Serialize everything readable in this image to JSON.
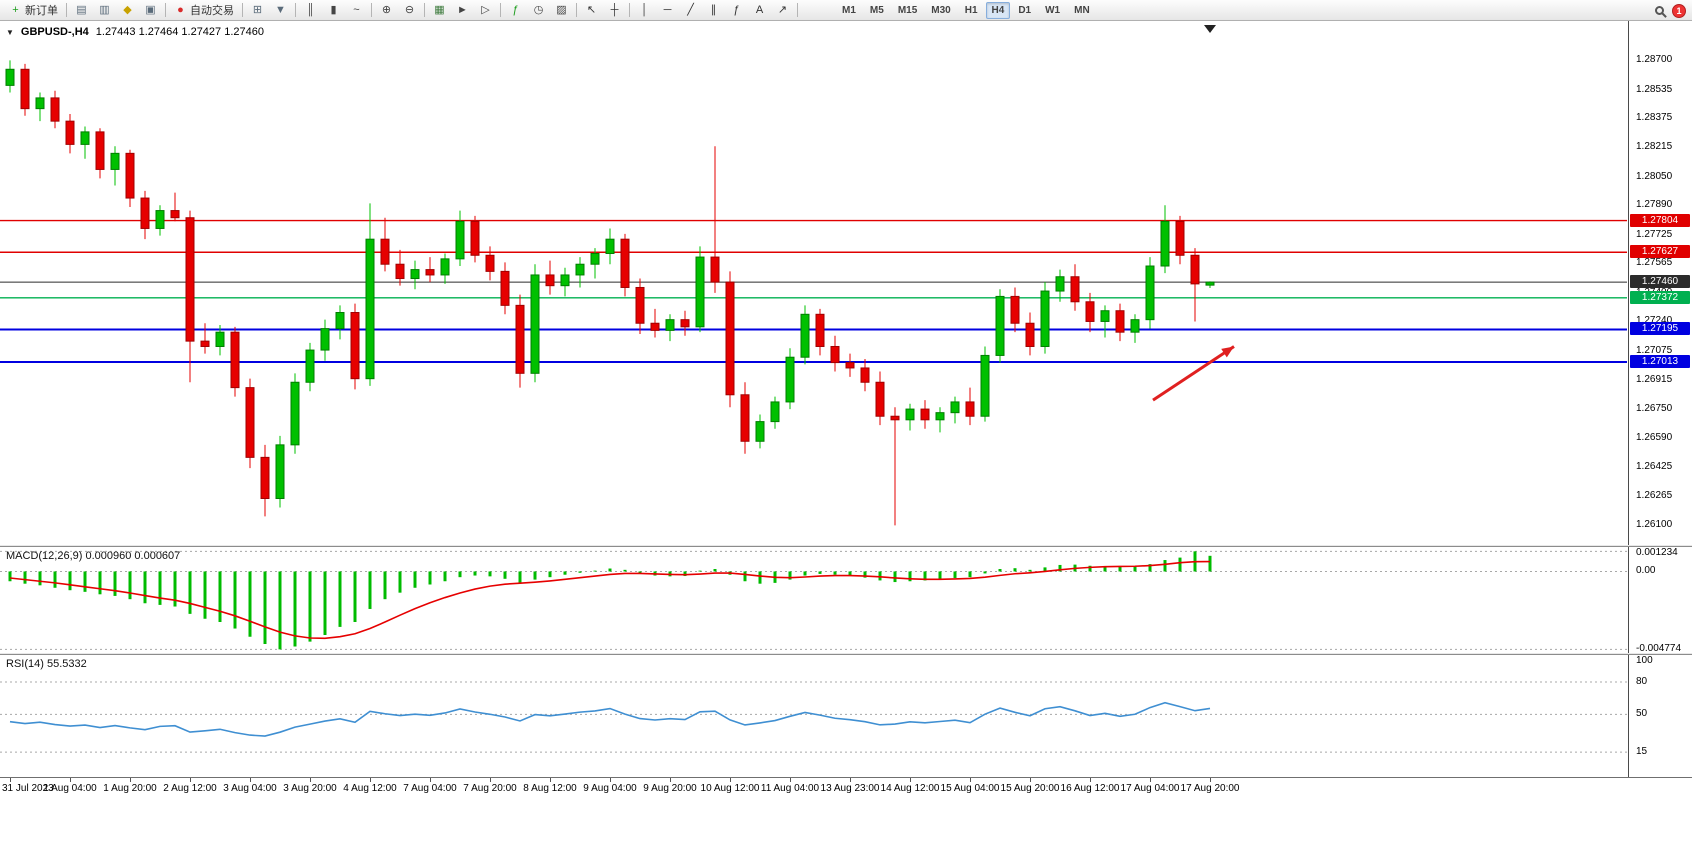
{
  "toolbar": {
    "new_order_label": "新订单",
    "auto_trading_label": "自动交易",
    "notification_count": "1",
    "timeframes": [
      "M1",
      "M5",
      "M15",
      "M30",
      "H1",
      "H4",
      "D1",
      "W1",
      "MN"
    ],
    "active_timeframe": "H4",
    "items": [
      {
        "name": "new-order-button",
        "glyph": "+",
        "color": "#1d9d1d",
        "label": "新订单"
      },
      {
        "sep": true
      },
      {
        "name": "market-watch-icon",
        "glyph": "▤",
        "color": "#5a6b7a"
      },
      {
        "name": "data-window-icon",
        "glyph": "▥",
        "color": "#5a6b7a"
      },
      {
        "name": "navigator-icon",
        "glyph": "◆",
        "color": "#c8a200"
      },
      {
        "name": "terminal-icon",
        "glyph": "▣",
        "color": "#5a6b7a"
      },
      {
        "sep": true
      },
      {
        "name": "autotrading-button",
        "glyph": "●",
        "color": "#d92b2b",
        "label": "自动交易"
      },
      {
        "sep": true
      },
      {
        "name": "new-chart-icon",
        "glyph": "⊞",
        "color": "#5a6b7a"
      },
      {
        "name": "profiles-icon",
        "glyph": "▼",
        "color": "#5a6b7a"
      },
      {
        "sep": true
      },
      {
        "name": "bar-chart-icon",
        "glyph": "║",
        "color": "#444444"
      },
      {
        "name": "candlestick-icon",
        "glyph": "▮",
        "color": "#444444"
      },
      {
        "name": "line-chart-icon",
        "glyph": "~",
        "color": "#444444"
      },
      {
        "sep": true
      },
      {
        "name": "zoom-in-icon",
        "glyph": "⊕",
        "color": "#444444"
      },
      {
        "name": "zoom-out-icon",
        "glyph": "⊖",
        "color": "#444444"
      },
      {
        "sep": true
      },
      {
        "name": "tile-windows-icon",
        "glyph": "▦",
        "color": "#3c7a3c"
      },
      {
        "name": "auto-scroll-icon",
        "glyph": "►",
        "color": "#444444"
      },
      {
        "name": "chart-shift-icon",
        "glyph": "▷",
        "color": "#444444"
      },
      {
        "sep": true
      },
      {
        "name": "indicators-button",
        "glyph": "ƒ",
        "color": "#1d9d1d"
      },
      {
        "name": "periods-dropdown",
        "glyph": "◷",
        "color": "#444444"
      },
      {
        "name": "templates-dropdown",
        "glyph": "▨",
        "color": "#444444"
      },
      {
        "sep": true
      },
      {
        "name": "cursor-icon",
        "glyph": "↖",
        "color": "#333333"
      },
      {
        "name": "crosshair-icon",
        "glyph": "┼",
        "color": "#333333"
      },
      {
        "sep": true
      },
      {
        "name": "vertical-line-icon",
        "glyph": "│",
        "color": "#333333"
      },
      {
        "name": "horizontal-line-icon",
        "glyph": "─",
        "color": "#333333"
      },
      {
        "name": "trendline-icon",
        "glyph": "╱",
        "color": "#333333"
      },
      {
        "name": "channel-icon",
        "glyph": "∥",
        "color": "#333333"
      },
      {
        "name": "fibonacci-icon",
        "glyph": "ƒ",
        "color": "#333333"
      },
      {
        "name": "text-icon",
        "glyph": "A",
        "color": "#333333"
      },
      {
        "name": "arrows-dropdown",
        "glyph": "↗",
        "color": "#333333"
      },
      {
        "sep": true
      }
    ]
  },
  "chart": {
    "collapse_glyph": "▼",
    "symbol_title": "GBPUSD-,H4",
    "ohlc_text": "1.27443 1.27464 1.27427 1.27460",
    "shift_marker_glyph": "▼"
  },
  "chart_data": [
    {
      "type": "candlestick",
      "symbol": "GBPUSD-",
      "timeframe": "H4",
      "open": "1.27443",
      "high": "1.27464",
      "low": "1.27427",
      "close": "1.27460",
      "ylim": [
        1.2599,
        1.2892
      ],
      "up_color": "#00c000",
      "up_border": "#007d00",
      "down_color": "#e60000",
      "down_border": "#a00000",
      "y_axis_ticks": [
        "1.28700",
        "1.28535",
        "1.28375",
        "1.28215",
        "1.28050",
        "1.27890",
        "1.27725",
        "1.27565",
        "1.27400",
        "1.27240",
        "1.27075",
        "1.26915",
        "1.26750",
        "1.26590",
        "1.26425",
        "1.26265",
        "1.26100"
      ],
      "x_labels": [
        "31 Jul 2023",
        "1 Aug 04:00",
        "1 Aug 20:00",
        "2 Aug 12:00",
        "3 Aug 04:00",
        "3 Aug 20:00",
        "4 Aug 12:00",
        "7 Aug 04:00",
        "7 Aug 20:00",
        "8 Aug 12:00",
        "9 Aug 04:00",
        "9 Aug 20:00",
        "10 Aug 12:00",
        "11 Aug 04:00",
        "13 Aug 23:00",
        "14 Aug 12:00",
        "15 Aug 04:00",
        "15 Aug 20:00",
        "16 Aug 12:00",
        "17 Aug 04:00",
        "17 Aug 20:00"
      ],
      "x_label_step": 4,
      "h_lines": [
        {
          "price": 1.27804,
          "label": "1.27804",
          "color": "#e00000",
          "width": 1.4
        },
        {
          "price": 1.27627,
          "label": "1.27627",
          "color": "#e00000",
          "width": 1.4
        },
        {
          "price": 1.2746,
          "label": "1.27460",
          "color": "#2b2b2b",
          "width": 1
        },
        {
          "price": 1.27372,
          "label": "1.27372",
          "color": "#00b050",
          "width": 1.4
        },
        {
          "price": 1.27195,
          "label": "1.27195",
          "color": "#0000e0",
          "width": 2
        },
        {
          "price": 1.27013,
          "label": "1.27013",
          "color": "#0000e0",
          "width": 2
        }
      ],
      "arrow": {
        "from_index": 76.2,
        "from_price": 1.268,
        "to_index": 81.6,
        "to_price": 1.271,
        "color": "#e02020"
      },
      "candles": [
        [
          1.2856,
          1.287,
          1.2852,
          1.2865
        ],
        [
          1.2865,
          1.2868,
          1.2839,
          1.2843
        ],
        [
          1.2843,
          1.2852,
          1.2836,
          1.2849
        ],
        [
          1.2849,
          1.2853,
          1.2832,
          1.2836
        ],
        [
          1.2836,
          1.284,
          1.2818,
          1.2823
        ],
        [
          1.2823,
          1.2833,
          1.2815,
          1.283
        ],
        [
          1.283,
          1.2832,
          1.2804,
          1.2809
        ],
        [
          1.2809,
          1.2822,
          1.28,
          1.2818
        ],
        [
          1.2818,
          1.282,
          1.2788,
          1.2793
        ],
        [
          1.2793,
          1.2797,
          1.277,
          1.2776
        ],
        [
          1.2776,
          1.2789,
          1.2772,
          1.2786
        ],
        [
          1.2786,
          1.2796,
          1.278,
          1.2782
        ],
        [
          1.2782,
          1.2786,
          1.269,
          1.2713
        ],
        [
          1.2713,
          1.2723,
          1.2706,
          1.271
        ],
        [
          1.271,
          1.2722,
          1.2705,
          1.2718
        ],
        [
          1.2718,
          1.2721,
          1.2682,
          1.2687
        ],
        [
          1.2687,
          1.2692,
          1.2642,
          1.2648
        ],
        [
          1.2648,
          1.2655,
          1.2615,
          1.2625
        ],
        [
          1.2625,
          1.266,
          1.262,
          1.2655
        ],
        [
          1.2655,
          1.2695,
          1.265,
          1.269
        ],
        [
          1.269,
          1.2712,
          1.2685,
          1.2708
        ],
        [
          1.2708,
          1.2725,
          1.2702,
          1.272
        ],
        [
          1.272,
          1.2733,
          1.2714,
          1.2729
        ],
        [
          1.2729,
          1.2734,
          1.2686,
          1.2692
        ],
        [
          1.2692,
          1.279,
          1.2688,
          1.277
        ],
        [
          1.277,
          1.2782,
          1.2752,
          1.2756
        ],
        [
          1.2756,
          1.2764,
          1.2744,
          1.2748
        ],
        [
          1.2748,
          1.2758,
          1.2742,
          1.2753
        ],
        [
          1.2753,
          1.276,
          1.2746,
          1.275
        ],
        [
          1.275,
          1.2762,
          1.2745,
          1.2759
        ],
        [
          1.2759,
          1.2786,
          1.2755,
          1.278
        ],
        [
          1.278,
          1.2783,
          1.2757,
          1.2761
        ],
        [
          1.2761,
          1.2766,
          1.2747,
          1.2752
        ],
        [
          1.2752,
          1.2757,
          1.2728,
          1.2733
        ],
        [
          1.2733,
          1.2739,
          1.2687,
          1.2695
        ],
        [
          1.2695,
          1.2756,
          1.269,
          1.275
        ],
        [
          1.275,
          1.2758,
          1.2739,
          1.2744
        ],
        [
          1.2744,
          1.2754,
          1.2738,
          1.275
        ],
        [
          1.275,
          1.276,
          1.2743,
          1.2756
        ],
        [
          1.2756,
          1.2765,
          1.2748,
          1.2762
        ],
        [
          1.2762,
          1.2776,
          1.2756,
          1.277
        ],
        [
          1.277,
          1.2773,
          1.2738,
          1.2743
        ],
        [
          1.2743,
          1.2748,
          1.2717,
          1.2723
        ],
        [
          1.2723,
          1.2731,
          1.2715,
          1.2719
        ],
        [
          1.2719,
          1.2728,
          1.2713,
          1.2725
        ],
        [
          1.2725,
          1.273,
          1.2716,
          1.2721
        ],
        [
          1.2721,
          1.2766,
          1.2718,
          1.276
        ],
        [
          1.276,
          1.2822,
          1.274,
          1.2746
        ],
        [
          1.2746,
          1.2752,
          1.2676,
          1.2683
        ],
        [
          1.2683,
          1.269,
          1.265,
          1.2657
        ],
        [
          1.2657,
          1.2672,
          1.2653,
          1.2668
        ],
        [
          1.2668,
          1.2682,
          1.2664,
          1.2679
        ],
        [
          1.2679,
          1.2709,
          1.2675,
          1.2704
        ],
        [
          1.2704,
          1.2733,
          1.27,
          1.2728
        ],
        [
          1.2728,
          1.2731,
          1.2705,
          1.271
        ],
        [
          1.271,
          1.2716,
          1.2696,
          1.2701
        ],
        [
          1.2701,
          1.2706,
          1.2693,
          1.2698
        ],
        [
          1.2698,
          1.2703,
          1.2685,
          1.269
        ],
        [
          1.269,
          1.2696,
          1.2666,
          1.2671
        ],
        [
          1.2671,
          1.2676,
          1.261,
          1.2669
        ],
        [
          1.2669,
          1.2678,
          1.2663,
          1.2675
        ],
        [
          1.2675,
          1.268,
          1.2664,
          1.2669
        ],
        [
          1.2669,
          1.2676,
          1.2662,
          1.2673
        ],
        [
          1.2673,
          1.2682,
          1.2667,
          1.2679
        ],
        [
          1.2679,
          1.2687,
          1.2666,
          1.2671
        ],
        [
          1.2671,
          1.271,
          1.2668,
          1.2705
        ],
        [
          1.2705,
          1.2742,
          1.2701,
          1.2738
        ],
        [
          1.2738,
          1.2743,
          1.2718,
          1.2723
        ],
        [
          1.2723,
          1.2729,
          1.2705,
          1.271
        ],
        [
          1.271,
          1.2746,
          1.2706,
          1.2741
        ],
        [
          1.2741,
          1.2753,
          1.2735,
          1.2749
        ],
        [
          1.2749,
          1.2756,
          1.273,
          1.2735
        ],
        [
          1.2735,
          1.274,
          1.2718,
          1.2724
        ],
        [
          1.2724,
          1.2733,
          1.2715,
          1.273
        ],
        [
          1.273,
          1.2734,
          1.2713,
          1.2718
        ],
        [
          1.2718,
          1.2728,
          1.2712,
          1.2725
        ],
        [
          1.2725,
          1.276,
          1.272,
          1.2755
        ],
        [
          1.2755,
          1.2789,
          1.2751,
          1.278
        ],
        [
          1.278,
          1.2783,
          1.2756,
          1.2761
        ],
        [
          1.2761,
          1.2765,
          1.2724,
          1.2745
        ],
        [
          1.27443,
          1.27464,
          1.27427,
          1.2746
        ]
      ]
    },
    {
      "type": "macd",
      "label": "MACD(12,26,9) 0.000960 0.000607",
      "ylim": [
        -0.005,
        0.0015
      ],
      "hist_color": "#00bb00",
      "signal_color": "#e60000",
      "y_axis_ticks": [
        "0.001234",
        "0.00",
        "-0.004774"
      ],
      "values_hist": [
        -0.0006,
        -0.00075,
        -0.00085,
        -0.001,
        -0.00115,
        -0.00125,
        -0.0014,
        -0.0015,
        -0.0017,
        -0.00195,
        -0.00205,
        -0.00215,
        -0.0026,
        -0.0029,
        -0.0031,
        -0.0035,
        -0.004,
        -0.00445,
        -0.004774,
        -0.0046,
        -0.0043,
        -0.0039,
        -0.0034,
        -0.0031,
        -0.0023,
        -0.0017,
        -0.0013,
        -0.001,
        -0.0008,
        -0.0006,
        -0.00035,
        -0.00025,
        -0.0003,
        -0.00045,
        -0.0007,
        -0.0005,
        -0.00035,
        -0.0002,
        -8e-05,
        5e-05,
        0.00018,
        0.0001,
        -0.0001,
        -0.00025,
        -0.0003,
        -0.00028,
        5e-05,
        0.00015,
        -0.0002,
        -0.0006,
        -0.00075,
        -0.0007,
        -0.0005,
        -0.00025,
        -0.00015,
        -0.0002,
        -0.00028,
        -0.00038,
        -0.00055,
        -0.00065,
        -0.0006,
        -0.00055,
        -0.00048,
        -0.0004,
        -0.00035,
        -0.00012,
        0.00015,
        0.0002,
        0.0001,
        0.00025,
        0.0004,
        0.00042,
        0.00035,
        0.00032,
        0.00028,
        0.0003,
        0.00045,
        0.0007,
        0.00085,
        0.001234,
        0.00096
      ],
      "values_signal": [
        -0.0004,
        -0.0005,
        -0.0006,
        -0.0007,
        -0.00082,
        -0.00094,
        -0.00106,
        -0.00118,
        -0.00132,
        -0.00148,
        -0.00163,
        -0.00176,
        -0.00196,
        -0.0022,
        -0.00244,
        -0.00272,
        -0.00305,
        -0.0034,
        -0.00372,
        -0.00395,
        -0.00408,
        -0.0041,
        -0.004,
        -0.00382,
        -0.0035,
        -0.0031,
        -0.00268,
        -0.00228,
        -0.00192,
        -0.0016,
        -0.00132,
        -0.00108,
        -0.0009,
        -0.00078,
        -0.00072,
        -0.00066,
        -0.00058,
        -0.00048,
        -0.00038,
        -0.00028,
        -0.00018,
        -0.00012,
        -0.00012,
        -0.00015,
        -0.00018,
        -0.0002,
        -0.00016,
        -0.0001,
        -0.0001,
        -0.00018,
        -0.00028,
        -0.00036,
        -0.00038,
        -0.00034,
        -0.00028,
        -0.00025,
        -0.00025,
        -0.00028,
        -0.00033,
        -0.0004,
        -0.00045,
        -0.00048,
        -0.00048,
        -0.00046,
        -0.00043,
        -0.00035,
        -0.00024,
        -0.00014,
        -8e-05,
        0.0,
        0.0001,
        0.00019,
        0.00025,
        0.00029,
        0.00031,
        0.00032,
        0.00036,
        0.00044,
        0.00054,
        0.0006,
        0.000607
      ]
    },
    {
      "type": "rsi",
      "label": "RSI(14) 55.5332",
      "ylim": [
        -8,
        105
      ],
      "line_color": "#3f8fd2",
      "levels": [
        80,
        50,
        15
      ],
      "y_axis_ticks": [
        "100",
        "80",
        "50",
        "15"
      ],
      "values": [
        43.2,
        41.5,
        42.8,
        40.6,
        39.2,
        40.1,
        37.8,
        39.6,
        37.5,
        35.8,
        38.9,
        39.5,
        33.6,
        34.8,
        36.2,
        33.1,
        30.8,
        29.9,
        33.5,
        38.2,
        41.0,
        43.8,
        45.9,
        42.7,
        52.8,
        50.6,
        48.9,
        50.2,
        49.1,
        51.3,
        55.0,
        52.2,
        50.1,
        47.6,
        43.9,
        49.8,
        48.7,
        50.3,
        52.1,
        53.2,
        55.4,
        50.2,
        46.1,
        44.8,
        46.0,
        45.2,
        52.4,
        53.0,
        44.9,
        40.2,
        42.1,
        44.3,
        48.2,
        51.8,
        49.3,
        46.4,
        45.1,
        43.2,
        40.3,
        41.0,
        43.1,
        42.2,
        43.4,
        44.6,
        42.3,
        50.2,
        55.8,
        51.9,
        48.7,
        55.2,
        57.1,
        53.3,
        48.9,
        51.0,
        48.2,
        50.1,
        56.3,
        60.8,
        57.2,
        53.4,
        55.53
      ]
    }
  ]
}
